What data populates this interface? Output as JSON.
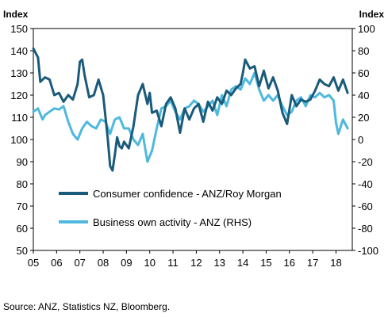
{
  "chart_data": {
    "type": "line",
    "y_left_title": "Index",
    "y_right_title": "Index",
    "y_left_range": [
      50,
      150
    ],
    "y_right_range": [
      -100,
      100
    ],
    "y_left_ticks": [
      "150",
      "140",
      "130",
      "120",
      "110",
      "100",
      "90",
      "80",
      "70",
      "60",
      "50"
    ],
    "y_right_ticks": [
      "100",
      "80",
      "60",
      "40",
      "20",
      "0",
      "-20",
      "-40",
      "-60",
      "-80",
      "-100"
    ],
    "x_range": [
      2005.0,
      2018.7
    ],
    "x_ticks": [
      "05",
      "06",
      "07",
      "08",
      "09",
      "10",
      "11",
      "12",
      "13",
      "14",
      "15",
      "16",
      "17",
      "18"
    ],
    "grid": false,
    "legend_position": "lower-left inside",
    "colors": {
      "consumer": "#1a5a7a",
      "business": "#4fb8dd"
    },
    "series": [
      {
        "name": "Consumer confidence - ANZ/Roy Morgan",
        "axis": "left",
        "x": [
          2005.0,
          2005.1,
          2005.2,
          2005.3,
          2005.4,
          2005.5,
          2005.7,
          2005.9,
          2006.1,
          2006.3,
          2006.5,
          2006.7,
          2006.9,
          2007.0,
          2007.1,
          2007.2,
          2007.4,
          2007.6,
          2007.8,
          2008.0,
          2008.1,
          2008.2,
          2008.3,
          2008.4,
          2008.5,
          2008.6,
          2008.7,
          2008.8,
          2008.9,
          2009.1,
          2009.3,
          2009.5,
          2009.7,
          2009.9,
          2010.0,
          2010.1,
          2010.3,
          2010.5,
          2010.7,
          2010.9,
          2011.1,
          2011.3,
          2011.5,
          2011.7,
          2011.9,
          2012.1,
          2012.3,
          2012.5,
          2012.7,
          2012.9,
          2013.1,
          2013.3,
          2013.5,
          2013.7,
          2013.9,
          2014.0,
          2014.1,
          2014.3,
          2014.5,
          2014.7,
          2014.9,
          2015.1,
          2015.3,
          2015.5,
          2015.7,
          2015.9,
          2016.1,
          2016.3,
          2016.5,
          2016.7,
          2016.9,
          2017.1,
          2017.3,
          2017.5,
          2017.7,
          2017.9,
          2018.1,
          2018.3,
          2018.5
        ],
        "y": [
          141,
          139,
          137,
          126,
          127,
          128,
          127,
          120,
          121,
          117,
          120,
          118,
          125,
          135,
          136,
          129,
          119,
          120,
          127,
          120,
          110,
          100,
          88,
          86,
          93,
          101,
          97,
          96,
          99,
          96,
          106,
          120,
          125,
          116,
          121,
          112,
          113,
          106,
          116,
          119,
          114,
          103,
          114,
          109,
          114,
          116,
          108,
          117,
          113,
          119,
          116,
          122,
          120,
          123,
          125,
          130,
          136,
          132,
          133,
          124,
          131,
          123,
          128,
          122,
          112,
          107,
          120,
          115,
          118,
          117,
          118,
          122,
          127,
          125,
          124,
          128,
          122,
          127,
          121
        ]
      },
      {
        "name": "Business own activity - ANZ (RHS)",
        "axis": "right",
        "x": [
          2005.0,
          2005.2,
          2005.4,
          2005.5,
          2005.7,
          2005.9,
          2006.1,
          2006.3,
          2006.5,
          2006.7,
          2006.9,
          2007.1,
          2007.3,
          2007.5,
          2007.7,
          2007.9,
          2008.1,
          2008.3,
          2008.5,
          2008.7,
          2008.9,
          2009.1,
          2009.3,
          2009.5,
          2009.7,
          2009.9,
          2010.1,
          2010.3,
          2010.5,
          2010.7,
          2010.9,
          2011.1,
          2011.3,
          2011.5,
          2011.7,
          2011.9,
          2012.1,
          2012.3,
          2012.5,
          2012.7,
          2012.9,
          2013.1,
          2013.3,
          2013.5,
          2013.7,
          2013.9,
          2014.1,
          2014.3,
          2014.5,
          2014.7,
          2014.9,
          2015.1,
          2015.3,
          2015.5,
          2015.7,
          2015.9,
          2016.1,
          2016.3,
          2016.5,
          2016.7,
          2016.9,
          2017.1,
          2017.3,
          2017.5,
          2017.7,
          2017.9,
          2018.0,
          2018.1,
          2018.3,
          2018.5
        ],
        "y": [
          25,
          28,
          18,
          22,
          25,
          28,
          27,
          30,
          16,
          5,
          0,
          10,
          16,
          12,
          10,
          18,
          16,
          5,
          18,
          20,
          10,
          10,
          0,
          -5,
          5,
          -20,
          -10,
          10,
          28,
          30,
          35,
          25,
          18,
          28,
          30,
          35,
          32,
          25,
          30,
          35,
          22,
          40,
          30,
          45,
          48,
          45,
          55,
          50,
          60,
          45,
          35,
          40,
          35,
          40,
          30,
          22,
          25,
          35,
          38,
          30,
          40,
          38,
          42,
          38,
          40,
          35,
          15,
          5,
          18,
          10
        ]
      }
    ]
  },
  "source_note": "Source: ANZ, Statistics NZ, Bloomberg."
}
